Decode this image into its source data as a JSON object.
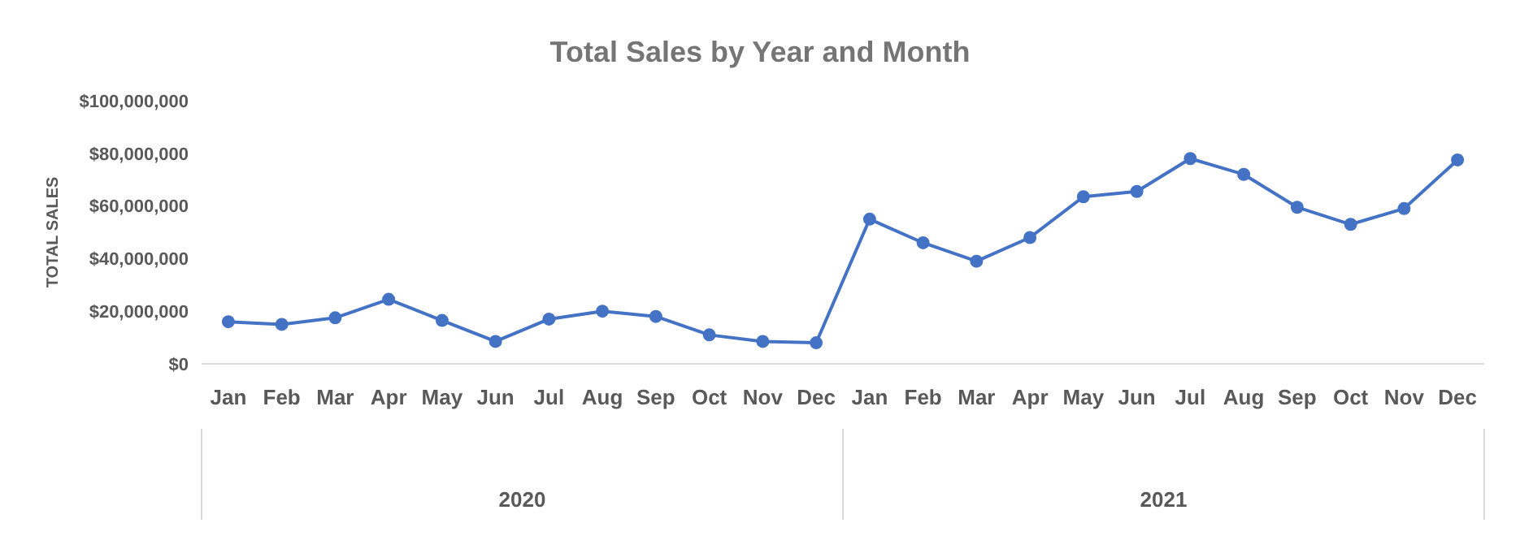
{
  "chart_data": {
    "type": "line",
    "title": "Total Sales by Year and Month",
    "ylabel": "TOTAL SALES",
    "categories": [
      "Jan",
      "Feb",
      "Mar",
      "Apr",
      "May",
      "Jun",
      "Jul",
      "Aug",
      "Sep",
      "Oct",
      "Nov",
      "Dec",
      "Jan",
      "Feb",
      "Mar",
      "Apr",
      "May",
      "Jun",
      "Jul",
      "Aug",
      "Sep",
      "Oct",
      "Nov",
      "Dec"
    ],
    "series": [
      {
        "color": "#4472c4",
        "values": [
          16000000,
          15000000,
          17500000,
          24500000,
          16500000,
          8500000,
          17000000,
          20000000,
          18000000,
          11000000,
          8500000,
          8000000,
          55000000,
          46000000,
          39000000,
          48000000,
          63500000,
          65500000,
          78000000,
          72000000,
          59500000,
          53000000,
          59000000,
          77500000
        ]
      }
    ],
    "ylim": [
      0,
      100000000
    ],
    "yticks": [
      {
        "value": 0,
        "label": "$0"
      },
      {
        "value": 20000000,
        "label": "$20,000,000"
      },
      {
        "value": 40000000,
        "label": "$40,000,000"
      },
      {
        "value": 60000000,
        "label": "$60,000,000"
      },
      {
        "value": 80000000,
        "label": "$80,000,000"
      },
      {
        "value": 100000000,
        "label": "$100,000,000"
      }
    ],
    "annotations": [
      "2020",
      "2021"
    ],
    "grid": false,
    "legend": false,
    "marker": "circle",
    "line_style": "solid"
  }
}
